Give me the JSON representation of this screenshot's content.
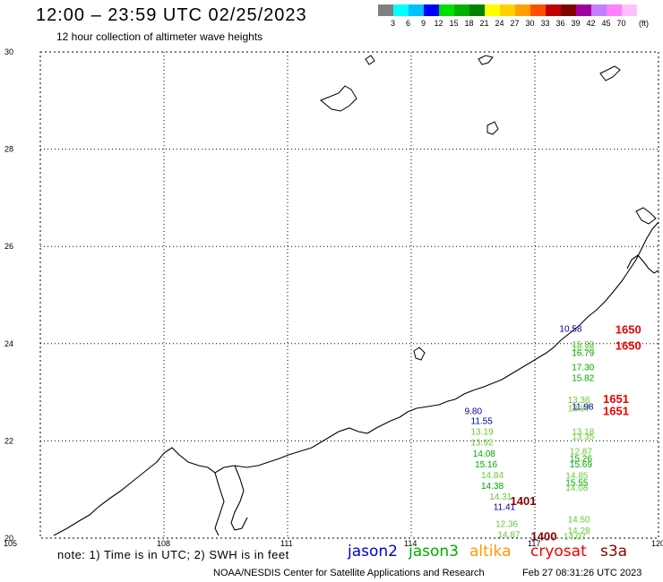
{
  "header": {
    "title": "12:00 – 23:59 UTC 02/25/2023",
    "subtitle": "12 hour collection of altimeter wave heights"
  },
  "colorbar": {
    "colors": [
      "#808080",
      "#00ffff",
      "#00c0ff",
      "#0000ff",
      "#00e000",
      "#00b000",
      "#008000",
      "#ffff00",
      "#ffd000",
      "#ffa000",
      "#ff5000",
      "#c00000",
      "#800000",
      "#a000a0",
      "#c080ff",
      "#ff80ff",
      "#ffc0ff"
    ],
    "labels": [
      "3",
      "6",
      "9",
      "12",
      "15",
      "18",
      "21",
      "24",
      "27",
      "30",
      "33",
      "36",
      "39",
      "42",
      "45",
      "70"
    ],
    "unit": "(ft)"
  },
  "map": {
    "lon_ticks": [
      "105",
      "108",
      "111",
      "114",
      "117",
      "120"
    ],
    "lat_ticks": [
      "30",
      "28",
      "26",
      "24",
      "22",
      "20"
    ],
    "lon_range": [
      105,
      120
    ],
    "lat_range": [
      20,
      30
    ]
  },
  "observations": [
    {
      "lon": 117.9,
      "lat": 24.32,
      "text": "10.58",
      "color": "#0000a0"
    },
    {
      "lon": 118.2,
      "lat": 24.0,
      "text": "15.39",
      "color": "#66cc33"
    },
    {
      "lon": 118.2,
      "lat": 23.93,
      "text": "16.26",
      "color": "#66cc33"
    },
    {
      "lon": 118.2,
      "lat": 23.82,
      "text": "16.79",
      "color": "#009900"
    },
    {
      "lon": 118.2,
      "lat": 23.53,
      "text": "17.30",
      "color": "#00aa00"
    },
    {
      "lon": 118.2,
      "lat": 23.31,
      "text": "15.82",
      "color": "#00aa00"
    },
    {
      "lon": 118.1,
      "lat": 22.85,
      "text": "13.36",
      "color": "#66cc33"
    },
    {
      "lon": 118.1,
      "lat": 22.68,
      "text": "13.87",
      "color": "#66cc33"
    },
    {
      "lon": 118.2,
      "lat": 22.72,
      "text": "11.98",
      "color": "#0000a0"
    },
    {
      "lon": 115.6,
      "lat": 22.62,
      "text": "9.80",
      "color": "#0000a0"
    },
    {
      "lon": 115.75,
      "lat": 22.42,
      "text": "11.55",
      "color": "#0000a0"
    },
    {
      "lon": 115.75,
      "lat": 22.2,
      "text": "13.19",
      "color": "#66cc33"
    },
    {
      "lon": 115.75,
      "lat": 21.98,
      "text": "13.92",
      "color": "#66cc33"
    },
    {
      "lon": 115.8,
      "lat": 21.75,
      "text": "14.08",
      "color": "#00aa00"
    },
    {
      "lon": 115.85,
      "lat": 21.53,
      "text": "15.16",
      "color": "#00aa00"
    },
    {
      "lon": 116.0,
      "lat": 21.31,
      "text": "14.84",
      "color": "#66cc33"
    },
    {
      "lon": 116.0,
      "lat": 21.09,
      "text": "14.38",
      "color": "#00aa00"
    },
    {
      "lon": 116.2,
      "lat": 20.87,
      "text": "14.31",
      "color": "#66cc33"
    },
    {
      "lon": 116.3,
      "lat": 20.65,
      "text": "11.41",
      "color": "#0000a0"
    },
    {
      "lon": 116.35,
      "lat": 20.3,
      "text": "12.36",
      "color": "#66cc33"
    },
    {
      "lon": 116.4,
      "lat": 20.08,
      "text": "14.87",
      "color": "#66cc33"
    },
    {
      "lon": 118.2,
      "lat": 22.2,
      "text": "13.18",
      "color": "#66cc33"
    },
    {
      "lon": 118.2,
      "lat": 22.1,
      "text": "13.35",
      "color": "#66cc33"
    },
    {
      "lon": 118.15,
      "lat": 21.8,
      "text": "12.87",
      "color": "#66cc33"
    },
    {
      "lon": 118.15,
      "lat": 21.65,
      "text": "15.26",
      "color": "#00aa00"
    },
    {
      "lon": 118.15,
      "lat": 21.53,
      "text": "15.69",
      "color": "#00aa00"
    },
    {
      "lon": 118.05,
      "lat": 21.3,
      "text": "14.85",
      "color": "#66cc33"
    },
    {
      "lon": 118.05,
      "lat": 21.15,
      "text": "15.55",
      "color": "#00aa00"
    },
    {
      "lon": 118.05,
      "lat": 21.05,
      "text": "14.08",
      "color": "#66cc33"
    },
    {
      "lon": 118.1,
      "lat": 20.4,
      "text": "14.50",
      "color": "#66cc33"
    },
    {
      "lon": 118.1,
      "lat": 20.17,
      "text": "14.28",
      "color": "#66cc33"
    },
    {
      "lon": 118.0,
      "lat": 20.05,
      "text": "14.07",
      "color": "#66cc33"
    }
  ],
  "passes": [
    {
      "lon": 119.3,
      "lat": 24.3,
      "text": "1650",
      "color": "#ee0000"
    },
    {
      "lon": 119.3,
      "lat": 23.97,
      "text": "1650",
      "color": "#ee0000"
    },
    {
      "lon": 119.0,
      "lat": 22.87,
      "text": "1651",
      "color": "#ee0000"
    },
    {
      "lon": 119.0,
      "lat": 22.62,
      "text": "1651",
      "color": "#ee0000"
    },
    {
      "lon": 116.75,
      "lat": 20.77,
      "text": "1401",
      "color": "#880000"
    },
    {
      "lon": 117.25,
      "lat": 20.05,
      "text": "1400",
      "color": "#880000"
    }
  ],
  "footer": {
    "note": "note: 1) Time is in UTC; 2) SWH is in feet",
    "legend": [
      {
        "text": "jason2",
        "color": "#0000cc"
      },
      {
        "text": "jason3",
        "color": "#00aa00"
      },
      {
        "text": "altika",
        "color": "#ff9900"
      },
      {
        "text": "cryosat",
        "color": "#ee0000"
      },
      {
        "text": "s3a",
        "color": "#880000"
      }
    ],
    "credit": "NOAA/NESDIS Center for Satellite Applications and Research",
    "timestamp": "Feb 27 08:31:26 UTC 2023"
  }
}
